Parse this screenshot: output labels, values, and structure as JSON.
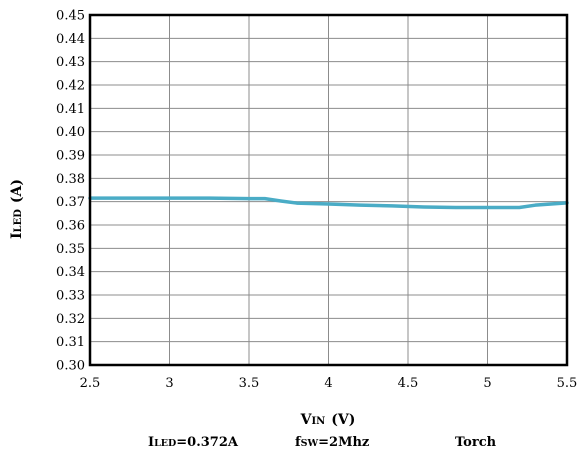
{
  "chart_data": {
    "type": "line",
    "title": "",
    "xlabel": {
      "main": "V",
      "sub": "IN",
      "unit": "(V)"
    },
    "ylabel": {
      "main": "I",
      "sub": "LED",
      "unit": "(A)"
    },
    "xlim": [
      2.5,
      5.5
    ],
    "ylim": [
      0.3,
      0.45
    ],
    "x_ticks": [
      "2.5",
      "3",
      "3.5",
      "4",
      "4.5",
      "5",
      "5.5"
    ],
    "y_ticks": [
      "0.30",
      "0.31",
      "0.32",
      "0.33",
      "0.34",
      "0.35",
      "0.36",
      "0.37",
      "0.38",
      "0.39",
      "0.40",
      "0.41",
      "0.42",
      "0.43",
      "0.44",
      "0.45"
    ],
    "grid": true,
    "legend": "none",
    "series": [
      {
        "color": "#4aacc6",
        "x": [
          2.5,
          2.75,
          3.0,
          3.25,
          3.5,
          3.6,
          3.7,
          3.8,
          4.0,
          4.2,
          4.4,
          4.6,
          4.8,
          5.0,
          5.2,
          5.3,
          5.4,
          5.5
        ],
        "y": [
          0.3715,
          0.3715,
          0.3715,
          0.3715,
          0.3713,
          0.3713,
          0.3703,
          0.3694,
          0.369,
          0.3685,
          0.3682,
          0.3677,
          0.3675,
          0.3675,
          0.3675,
          0.3685,
          0.369,
          0.3695
        ]
      }
    ]
  },
  "footer": {
    "iled": {
      "main": "I",
      "sub": "LED",
      "rest": "=0.372A"
    },
    "fsw": {
      "main": "f",
      "sub": "SW",
      "rest": "=2Mhz"
    },
    "mode": "Torch"
  }
}
